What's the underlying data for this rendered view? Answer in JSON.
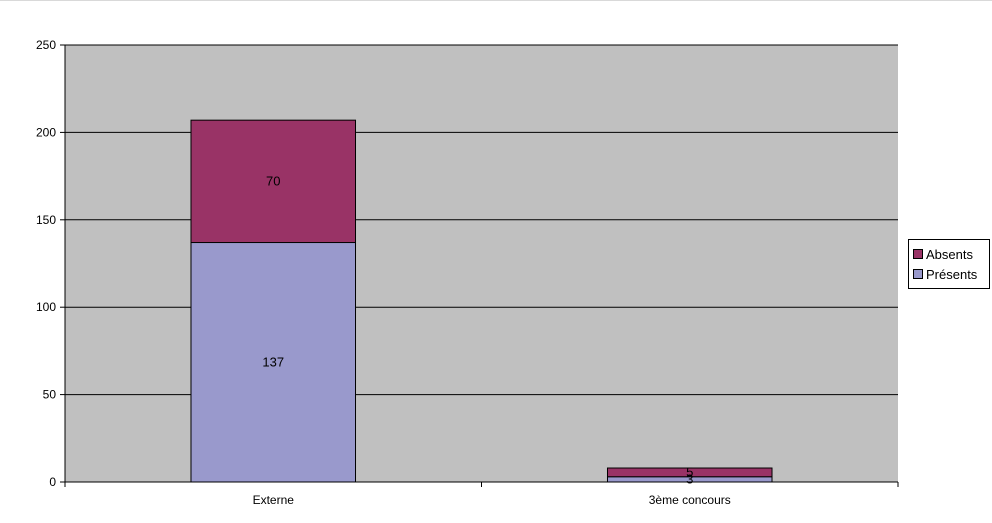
{
  "chart_data": {
    "type": "bar",
    "stacked": true,
    "title": "",
    "xlabel": "",
    "ylabel": "",
    "categories": [
      "Externe",
      "3ème concours"
    ],
    "series": [
      {
        "name": "Présents",
        "values": [
          137,
          3
        ],
        "color": "#9999cc"
      },
      {
        "name": "Absents",
        "values": [
          70,
          5
        ],
        "color": "#993366"
      }
    ],
    "ylim": [
      0,
      250
    ],
    "yticks": [
      "0",
      "50",
      "100",
      "150",
      "200",
      "250"
    ],
    "grid": true,
    "legend": "right",
    "plot_background": "#c0c0c0"
  },
  "legend": {
    "items": [
      {
        "label": "Absents",
        "color": "#993366"
      },
      {
        "label": "Présents",
        "color": "#9999cc"
      }
    ]
  }
}
